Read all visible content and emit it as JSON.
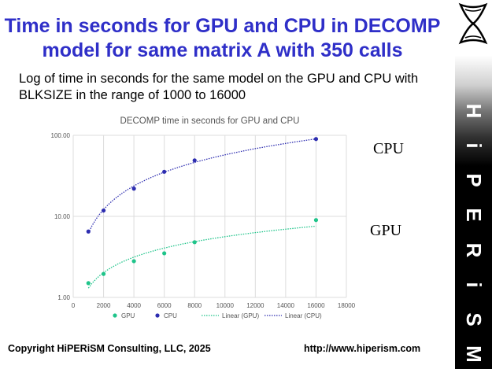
{
  "slide": {
    "title": "Time in seconds for GPU and CPU in DECOMP model for same matrix A with 350 calls",
    "subtitle": "Log of time in seconds for the same model on the GPU and CPU with BLKSIZE in the range of 1000 to 16000",
    "cpu_label": "CPU",
    "gpu_label": "GPU",
    "footer_copyright": "Copyright HiPERiSM Consulting, LLC, 2025",
    "footer_url": "http://www.hiperism.com"
  },
  "brand": {
    "letters": [
      "H",
      "i",
      "P",
      "E",
      "R",
      "i",
      "S",
      "M"
    ],
    "logo_icon": "hourglass-logo-icon"
  },
  "chart_data": {
    "type": "scatter",
    "title": "DECOMP time in seconds for GPU and CPU",
    "xlim": [
      0,
      18000
    ],
    "x_ticks": [
      0,
      2000,
      4000,
      6000,
      8000,
      10000,
      12000,
      14000,
      16000,
      18000
    ],
    "x_tick_labels": [
      "0",
      "2000",
      "4000",
      "6000",
      "8000",
      "10000",
      "12000",
      "14000",
      "16000",
      "18000"
    ],
    "ylim": [
      1,
      100
    ],
    "y_scale": "log",
    "y_ticks": [
      1,
      10,
      100
    ],
    "y_tick_labels": [
      "1.00",
      "10.00",
      "100.00"
    ],
    "grid": true,
    "legend_position": "bottom",
    "series": [
      {
        "name": "GPU",
        "color": "#1fc48a",
        "x": [
          1000,
          2000,
          4000,
          6000,
          8000,
          16000
        ],
        "y": [
          1.5,
          1.95,
          2.8,
          3.5,
          4.8,
          9.0
        ]
      },
      {
        "name": "CPU",
        "color": "#2d2db0",
        "x": [
          1000,
          2000,
          4000,
          6000,
          8000,
          16000
        ],
        "y": [
          6.5,
          11.8,
          22.0,
          35.5,
          49.0,
          90.0
        ]
      }
    ],
    "trendlines": [
      {
        "name": "Linear (GPU)",
        "color": "#1fc48a",
        "of": "GPU"
      },
      {
        "name": "Linear (CPU)",
        "color": "#2d2db0",
        "of": "CPU"
      }
    ]
  }
}
